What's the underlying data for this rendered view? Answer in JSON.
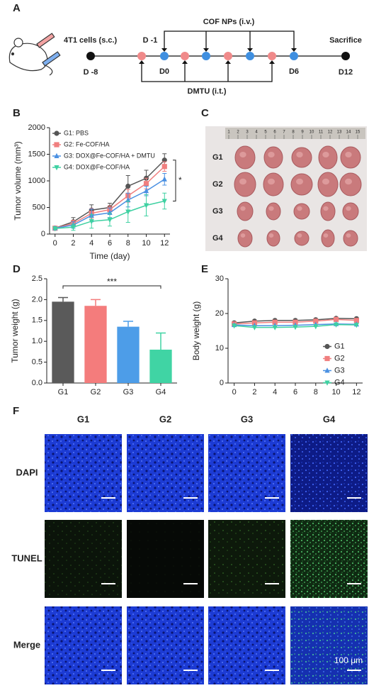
{
  "panel_labels": [
    "A",
    "B",
    "C",
    "D",
    "E",
    "F"
  ],
  "timeline": {
    "cells_label": "4T1 cells (s.c.)",
    "nanoparticles_label": "COF NPs (i.v.)",
    "dmtu_label": "DMTU (i.t.)",
    "sacrifice_label": "Sacrifice",
    "days": [
      "D -8",
      "D -1",
      "D0",
      "D6",
      "D12"
    ]
  },
  "chart_data": [
    {
      "type": "line",
      "x_label": "Time (day)",
      "y_label": "Tumor volume (mm³)",
      "x": [
        0,
        2,
        4,
        6,
        8,
        10,
        12
      ],
      "xlim": [
        -0.6,
        12.6
      ],
      "xticks": [
        0,
        2,
        4,
        6,
        8,
        10,
        12
      ],
      "ylim": [
        0,
        2000
      ],
      "yticks": [
        0,
        500,
        1000,
        1500,
        2000
      ],
      "legend": "upper left",
      "annotation": "*",
      "series": [
        {
          "name": "G1: PBS",
          "color": "#555555",
          "marker": "circle",
          "values": [
            110,
            230,
            450,
            500,
            900,
            1050,
            1390
          ],
          "errors": [
            20,
            80,
            100,
            80,
            200,
            150,
            120
          ]
        },
        {
          "name": "G2: Fe-COF/HA",
          "color": "#f07f7f",
          "marker": "square",
          "values": [
            110,
            200,
            390,
            460,
            720,
            950,
            1270
          ],
          "errors": [
            20,
            60,
            90,
            70,
            120,
            100,
            90
          ]
        },
        {
          "name": "G3: DOX@Fe-COF/HA + DMTU",
          "color": "#4a90e2",
          "marker": "triangle-up",
          "values": [
            110,
            170,
            350,
            400,
            640,
            810,
            1030
          ],
          "errors": [
            20,
            60,
            120,
            90,
            130,
            90,
            110
          ]
        },
        {
          "name": "G4: DOX@Fe-COF/HA",
          "color": "#3fd1a2",
          "marker": "triangle-down",
          "values": [
            105,
            130,
            240,
            270,
            420,
            540,
            620
          ],
          "errors": [
            20,
            60,
            130,
            120,
            200,
            200,
            150
          ]
        }
      ]
    },
    {
      "type": "bar",
      "y_label": "Tumor weight (g)",
      "categories": [
        "G1",
        "G2",
        "G3",
        "G4"
      ],
      "values": [
        1.95,
        1.85,
        1.35,
        0.8
      ],
      "errors": [
        0.1,
        0.15,
        0.13,
        0.4
      ],
      "colors": [
        "#5a5a5a",
        "#f47c7c",
        "#4d9de8",
        "#40d4a4"
      ],
      "ylim": [
        0,
        2.5
      ],
      "yticks": [
        {
          "value": 0,
          "label": "0.0"
        },
        0.5,
        {
          "value": 1,
          "label": "1.0"
        },
        1.5,
        {
          "value": 2,
          "label": "2.0"
        },
        2.5
      ],
      "annotation": "***"
    },
    {
      "type": "line",
      "y_label": "Body weight (g)",
      "x": [
        0,
        2,
        4,
        6,
        8,
        10,
        12
      ],
      "xlim": [
        -0.6,
        12.6
      ],
      "xticks": [
        0,
        2,
        4,
        6,
        8,
        10,
        12
      ],
      "ylim": [
        0,
        30
      ],
      "yticks": [
        0,
        10,
        20,
        30
      ],
      "legend": "center right",
      "series": [
        {
          "name": "G1",
          "color": "#555555",
          "marker": "circle",
          "values": [
            17.3,
            17.8,
            18,
            18,
            18.2,
            18.6,
            18.5
          ]
        },
        {
          "name": "G2",
          "color": "#f07f7f",
          "marker": "square",
          "values": [
            17,
            17.3,
            17.5,
            17.5,
            17.8,
            18.3,
            18
          ]
        },
        {
          "name": "G3",
          "color": "#4a90e2",
          "marker": "triangle-up",
          "values": [
            16.7,
            16.5,
            16.5,
            16.6,
            16.8,
            17,
            16.9
          ]
        },
        {
          "name": "G4",
          "color": "#3fd1a2",
          "marker": "triangle-down",
          "values": [
            16.5,
            16,
            16,
            16.1,
            16.3,
            16.8,
            16.7
          ]
        }
      ]
    }
  ],
  "photo": {
    "ruler_labels": [
      "1",
      "2",
      "3",
      "4",
      "5",
      "6",
      "7",
      "8",
      "9",
      "10",
      "11",
      "12",
      "13",
      "14",
      "15"
    ],
    "rows": [
      "G1",
      "G2",
      "G3",
      "G4"
    ]
  },
  "microscopy": {
    "columns": [
      "G1",
      "G2",
      "G3",
      "G4"
    ],
    "rows": [
      "DAPI",
      "TUNEL",
      "Merge"
    ],
    "scale_bar": "100 μm"
  }
}
